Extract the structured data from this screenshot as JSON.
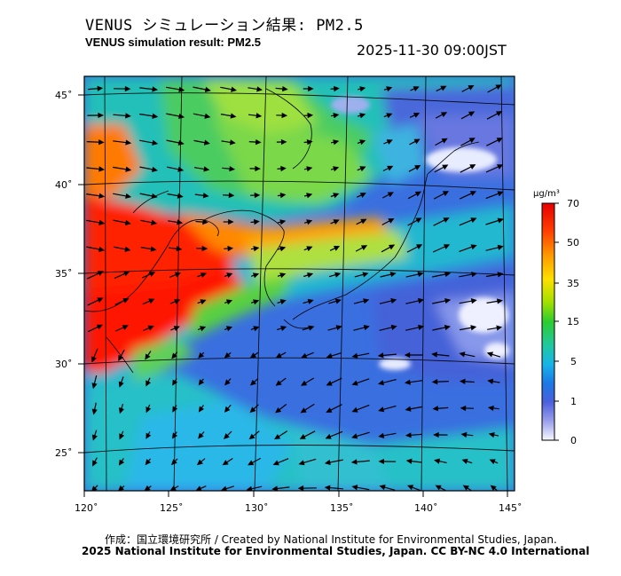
{
  "title_ja": "VENUS シミュレーション結果: PM2.5",
  "title_en": "VENUS simulation result: PM2.5",
  "timestamp": "2025-11-30 09:00JST",
  "lat_ticks": [
    "45˚",
    "40˚",
    "35˚",
    "30˚",
    "25˚"
  ],
  "lon_ticks": [
    "120˚",
    "125˚",
    "130˚",
    "135˚",
    "140˚",
    "145˚"
  ],
  "colorbar": {
    "unit": "µg/m³",
    "ticks": [
      "70",
      "50",
      "35",
      "15",
      "5",
      "1",
      "0"
    ],
    "colors": [
      "#e60000",
      "#ff4000",
      "#ff9900",
      "#ffe000",
      "#a0e000",
      "#2ccc30",
      "#20c8a0",
      "#18b4e8",
      "#1c78e6",
      "#4c60dc",
      "#9aa0ec",
      "#f8f8ff"
    ]
  },
  "credit_line1": "作成：国立環境研究所 / Created by National Institute for Environmental Studies, Japan.",
  "credit_line2": "2025 National Institute for Environmental Studies, Japan. CC BY-NC 4.0 International"
}
